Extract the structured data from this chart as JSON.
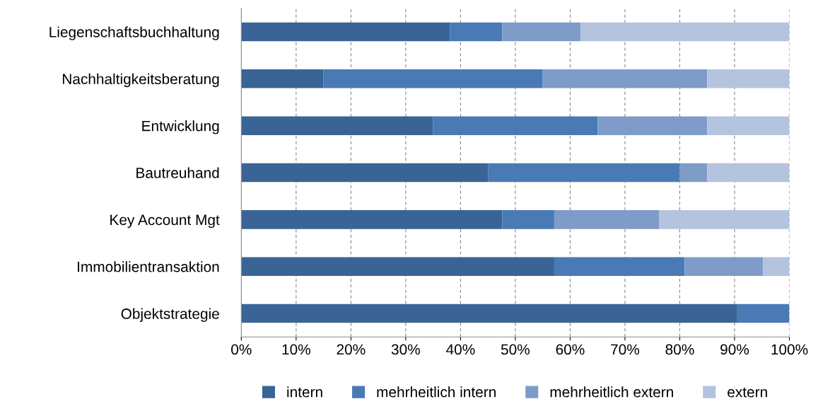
{
  "chart_data": {
    "type": "bar",
    "orientation": "horizontal",
    "stacked": true,
    "categories": [
      "Liegenschaftsbuchhaltung",
      "Nachhaltigkeitsberatung",
      "Entwicklung",
      "Bautreuhand",
      "Key Account Mgt",
      "Immobilientransaktion",
      "Objektstrategie"
    ],
    "series": [
      {
        "name": "intern",
        "color": "#3a6496",
        "values": [
          38.1,
          15,
          35,
          45,
          47.6,
          57.1,
          90.5
        ]
      },
      {
        "name": "mehrheitlich intern",
        "color": "#4a7ab5",
        "values": [
          9.5,
          40,
          30,
          35,
          9.5,
          23.8,
          9.5
        ]
      },
      {
        "name": "mehrheitlich extern",
        "color": "#7f9cc8",
        "values": [
          14.3,
          30,
          20,
          5,
          19.1,
          14.3,
          0
        ]
      },
      {
        "name": "extern",
        "color": "#b4c3de",
        "values": [
          38.1,
          15,
          15,
          15,
          23.8,
          4.8,
          0
        ]
      }
    ],
    "xlim": [
      0,
      100
    ],
    "xticks": [
      {
        "value": 0,
        "label": "0%"
      },
      {
        "value": 10,
        "label": "10%"
      },
      {
        "value": 20,
        "label": "20%"
      },
      {
        "value": 30,
        "label": "30%"
      },
      {
        "value": 40,
        "label": "40%"
      },
      {
        "value": 50,
        "label": "50%"
      },
      {
        "value": 60,
        "label": "60%"
      },
      {
        "value": 70,
        "label": "70%"
      },
      {
        "value": 80,
        "label": "80%"
      },
      {
        "value": 90,
        "label": "90%"
      },
      {
        "value": 100,
        "label": "100%"
      }
    ],
    "grid": "x",
    "legend": "bottom"
  }
}
